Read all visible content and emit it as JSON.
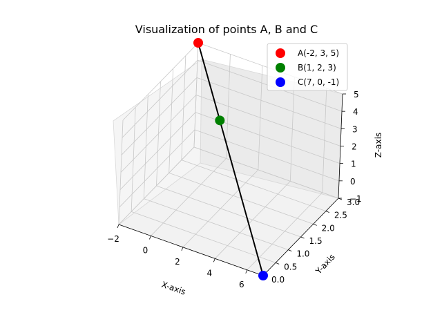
{
  "chart_data": {
    "type": "scatter",
    "title": "Visualization of points A, B and C",
    "xlabel": "X-axis",
    "ylabel": "Y-axis",
    "zlabel": "Z-axis",
    "xlim": [
      -2,
      7
    ],
    "ylim": [
      0,
      3
    ],
    "zlim": [
      -1,
      5
    ],
    "x_ticks": [
      "−2",
      "0",
      "2",
      "4",
      "6"
    ],
    "y_ticks": [
      "0.0",
      "0.5",
      "1.0",
      "1.5",
      "2.0",
      "2.5",
      "3.0"
    ],
    "z_ticks": [
      "−1",
      "0",
      "1",
      "2",
      "3",
      "4",
      "5"
    ],
    "grid": true,
    "legend_position": "top-right",
    "points": [
      {
        "name": "A(-2, 3, 5)",
        "x": -2,
        "y": 3,
        "z": 5,
        "color": "#ff0000"
      },
      {
        "name": "B(1, 2, 3)",
        "x": 1,
        "y": 2,
        "z": 3,
        "color": "#008000"
      },
      {
        "name": "C(7, 0, -1)",
        "x": 7,
        "y": 0,
        "z": -1,
        "color": "#0000ff"
      }
    ],
    "line": {
      "from": "A",
      "to": "C",
      "color": "#000000"
    }
  }
}
